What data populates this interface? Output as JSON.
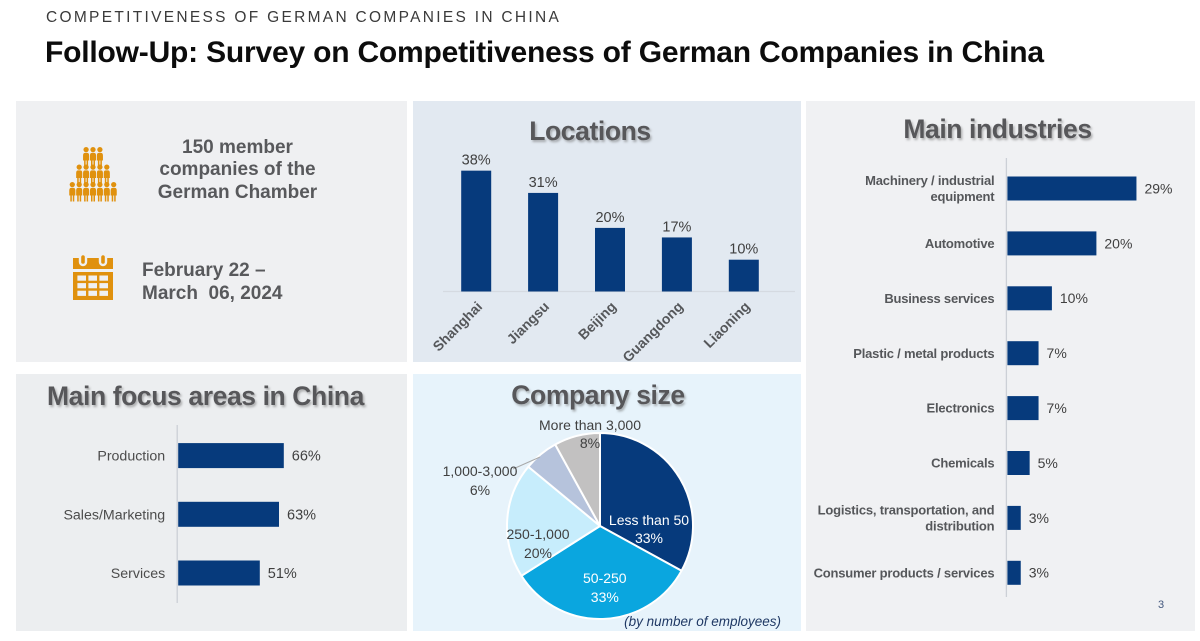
{
  "header": {
    "eyebrow": "COMPETITIVENESS OF GERMAN COMPANIES IN CHINA",
    "title": "Follow-Up: Survey on Competitiveness of German Companies in China"
  },
  "page_number": "3",
  "info_panel": {
    "people_icon": "people-group-icon",
    "calendar_icon": "calendar-icon",
    "icon_color": "#e0910e",
    "members_lines": [
      "150 member",
      "companies of the",
      "German Chamber"
    ],
    "date_lines": [
      "February 22 –",
      "March  06, 2024"
    ]
  },
  "colors": {
    "bar_navy": "#063a7c",
    "pie_azure": "#0aa6df",
    "pie_light_blue": "#c7edfc",
    "pie_periwinkle": "#b6c3dc",
    "pie_gray": "#c2c1c1",
    "panel_gray": "#eff0f2",
    "panel_blue_gray": "#e2e9f1",
    "panel_light_blue": "#e7f3fb",
    "accent_orange": "#e0910e"
  },
  "chart_data": [
    {
      "id": "locations",
      "type": "bar",
      "title": "Locations",
      "categories": [
        "Shanghai",
        "Jiangsu",
        "Beijing",
        "Guangdong",
        "Liaoning"
      ],
      "values": [
        38,
        31,
        20,
        17,
        10
      ],
      "unit": "%",
      "ylim": [
        0,
        40
      ],
      "grid": false,
      "legend": "none"
    },
    {
      "id": "focus",
      "type": "bar",
      "orientation": "horizontal",
      "title": "Main focus areas in China",
      "categories": [
        "Production",
        "Sales/Marketing",
        "Services"
      ],
      "values": [
        66,
        63,
        51
      ],
      "unit": "%",
      "xlim": [
        0,
        70
      ],
      "grid": false,
      "legend": "none"
    },
    {
      "id": "industries",
      "type": "bar",
      "orientation": "horizontal",
      "title": "Main industries",
      "categories": [
        "Machinery / industrial equipment",
        "Automotive",
        "Business services",
        "Plastic / metal products",
        "Electronics",
        "Chemicals",
        "Logistics, transportation, and distribution",
        "Consumer products / services"
      ],
      "category_lines": [
        [
          "Machinery / industrial",
          "equipment"
        ],
        [
          "Automotive"
        ],
        [
          "Business services"
        ],
        [
          "Plastic / metal products"
        ],
        [
          "Electronics"
        ],
        [
          "Chemicals"
        ],
        [
          "Logistics, transportation, and",
          "distribution"
        ],
        [
          "Consumer products / services"
        ]
      ],
      "values": [
        29,
        20,
        10,
        7,
        7,
        5,
        3,
        3
      ],
      "unit": "%",
      "xlim": [
        0,
        30
      ],
      "grid": false,
      "legend": "none"
    },
    {
      "id": "company_size",
      "type": "pie",
      "title": "Company size",
      "caption": "(by number of employees)",
      "labels": [
        "Less than 50",
        "50-250",
        "250-1,000",
        "1,000-3,000",
        "More than 3,000"
      ],
      "values": [
        33,
        33,
        20,
        6,
        8
      ],
      "unit": "%",
      "slice_colors": [
        "#063a7c",
        "#0aa6df",
        "#c7edfc",
        "#b6c3dc",
        "#c2c1c1"
      ],
      "label_placement": [
        "inside",
        "inside",
        "inside",
        "outside",
        "outside"
      ]
    }
  ]
}
